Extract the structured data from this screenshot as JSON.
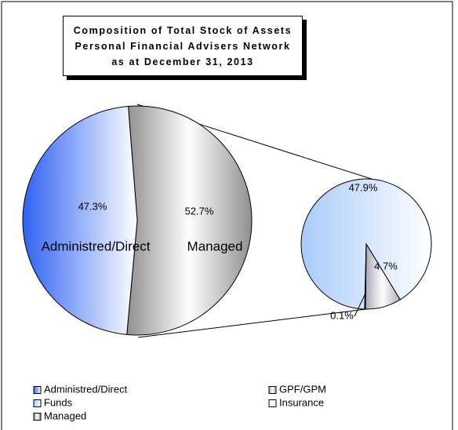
{
  "chart_data": {
    "type": "pie-of-pie",
    "title": "Composition of Total Stock of Assets Personal Financial Advisers Network as at December 31, 2013",
    "main": {
      "categories": [
        "Administred/Direct",
        "Managed"
      ],
      "values": [
        47.3,
        52.7
      ],
      "value_labels": [
        "47.3%",
        "52.7%"
      ],
      "colors": [
        "#2f62f2",
        "#8f8f8f"
      ]
    },
    "secondary": {
      "categories": [
        "Funds",
        "GPF/GPM",
        "Insurance"
      ],
      "values": [
        47.9,
        4.7,
        0.1
      ],
      "value_labels": [
        "47.9%",
        "4.7%",
        "0.1%"
      ],
      "colors": [
        "#a9cbfb",
        "#a9a9b8",
        "#ffffff"
      ]
    },
    "legend": "bottom"
  }
}
